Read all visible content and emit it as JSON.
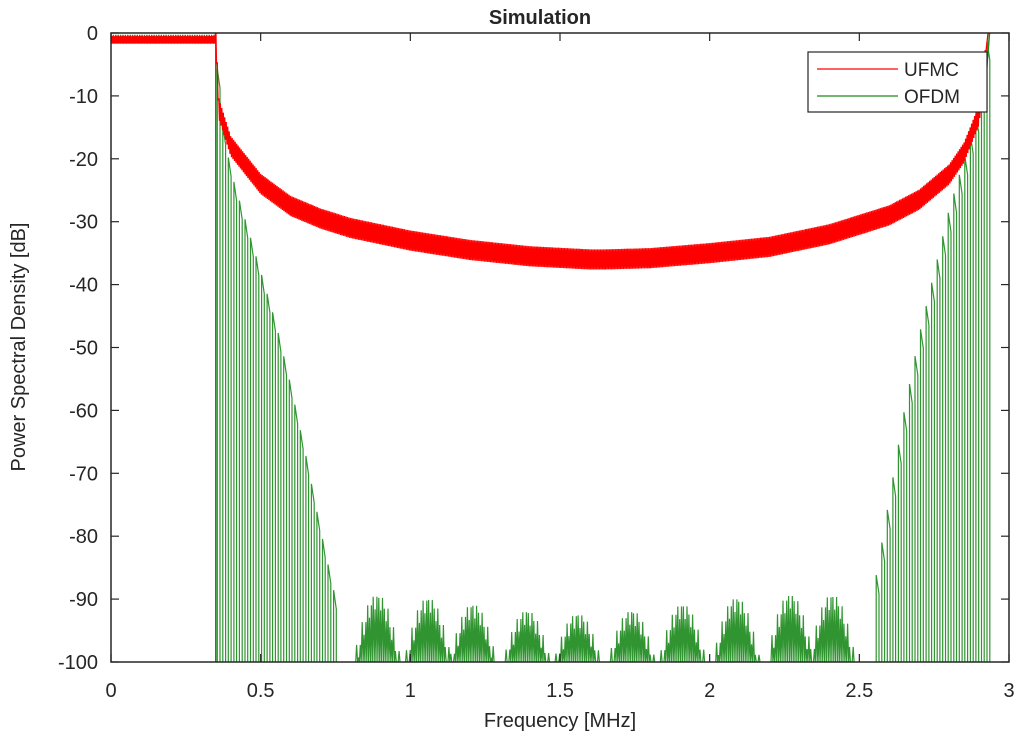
{
  "chart_data": {
    "type": "line",
    "title": "Simulation",
    "xlabel": "Frequency [MHz]",
    "ylabel": "Power Spectral Density [dB]",
    "xlim": [
      0,
      3
    ],
    "ylim": [
      -100,
      0
    ],
    "xticks": [
      0,
      0.5,
      1,
      1.5,
      2,
      2.5,
      3
    ],
    "xtick_labels": [
      "0",
      "0.5",
      "1",
      "1.5",
      "2",
      "2.5",
      "3"
    ],
    "yticks": [
      0,
      -10,
      -20,
      -30,
      -40,
      -50,
      -60,
      -70,
      -80,
      -90,
      -100
    ],
    "ytick_labels": [
      "0",
      "-10",
      "-20",
      "-30",
      "-40",
      "-50",
      "-60",
      "-70",
      "-80",
      "-90",
      "-100"
    ],
    "grid": false,
    "legend_position": "upper right",
    "series": [
      {
        "name": "UFMC",
        "color": "#ff0000",
        "description": "Flat passband near 0 dB from 0 to ~0.35 MHz, then sharp drop to ~-12 dB and a U-shaped rippled out-of-band floor reaching a minimum ~-36 dB near 1.65 MHz, rising back to ~0 dB at ~2.93 MHz",
        "x": [
          0,
          0.1,
          0.2,
          0.3,
          0.35,
          0.36,
          0.4,
          0.5,
          0.6,
          0.7,
          0.8,
          1.0,
          1.2,
          1.4,
          1.6,
          1.65,
          1.8,
          2.0,
          2.2,
          2.4,
          2.5,
          2.6,
          2.7,
          2.8,
          2.85,
          2.9,
          2.93
        ],
        "y": [
          -0.5,
          -0.5,
          -0.5,
          -0.5,
          -0.5,
          -12,
          -18,
          -24,
          -27.5,
          -29.5,
          -31,
          -33,
          -34.5,
          -35.5,
          -36,
          -36,
          -35.8,
          -35,
          -34,
          -32,
          -30.5,
          -29,
          -26.5,
          -22.5,
          -19,
          -13,
          0
        ]
      },
      {
        "name": "OFDM",
        "color": "#1a8a1a",
        "description": "Flat passband near 0 dB from 0 to ~0.35 MHz, then deep sinc-like sidelobes with nulls at -100 dB; envelope decays from ~-11 dB at 0.36 MHz to ~-90 dB near 0.75 MHz, lobed floor between -100 and ~-89 dB across 0.75-2.55 MHz, then rises back to ~0 dB at ~2.93 MHz",
        "envelope_x": [
          0,
          0.35,
          0.36,
          0.4,
          0.45,
          0.5,
          0.55,
          0.6,
          0.65,
          0.7,
          0.75,
          0.8,
          0.88,
          1.05,
          1.2,
          1.38,
          1.55,
          1.73,
          1.9,
          2.08,
          2.26,
          2.4,
          2.5,
          2.55,
          2.6,
          2.65,
          2.7,
          2.75,
          2.8,
          2.85,
          2.9,
          2.93
        ],
        "envelope_y": [
          -0.5,
          -0.5,
          -11,
          -22,
          -30,
          -38,
          -46,
          -56,
          -67,
          -79,
          -90,
          -91,
          -89.5,
          -90,
          -91,
          -92,
          -92.5,
          -92,
          -91,
          -90,
          -89.5,
          -89.5,
          -90,
          -88,
          -74,
          -60,
          -48,
          -38,
          -28,
          -20,
          -11,
          0
        ],
        "lobe_centers_floor": [
          0.88,
          1.05,
          1.2,
          1.38,
          1.55,
          1.73,
          1.9,
          2.08,
          2.26,
          2.4
        ],
        "floor_peak_db": [
          -89.5,
          -90,
          -91,
          -92,
          -92.5,
          -92,
          -91,
          -90,
          -89.5,
          -89.5
        ]
      }
    ]
  },
  "legend": {
    "items": [
      {
        "label": "UFMC",
        "color": "#ff0000"
      },
      {
        "label": "OFDM",
        "color": "#1a8a1a"
      }
    ]
  }
}
